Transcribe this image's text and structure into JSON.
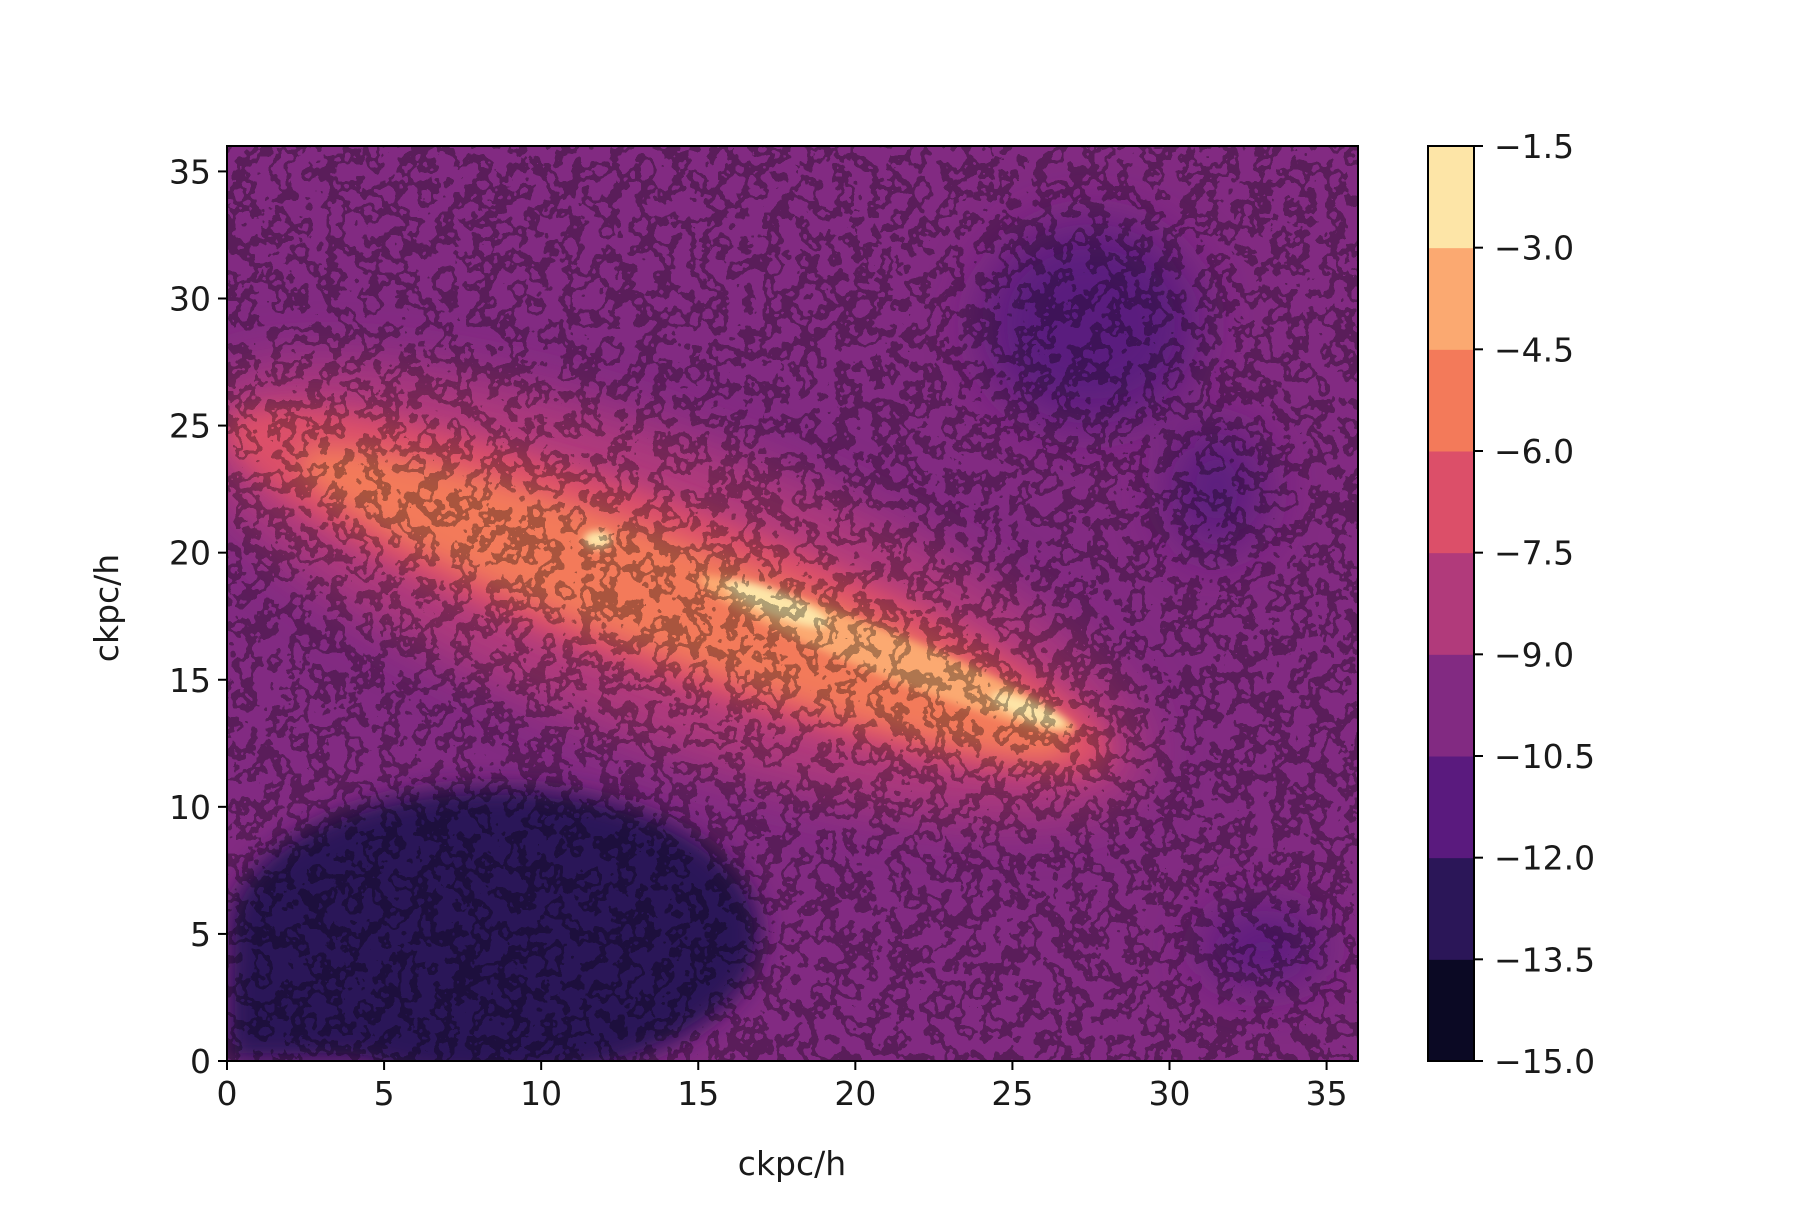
{
  "chart_data": {
    "type": "heatmap",
    "title": "",
    "xlabel": "ckpc/h",
    "ylabel": "ckpc/h",
    "xlim": [
      0,
      36
    ],
    "ylim": [
      0,
      36
    ],
    "xticks": [
      0,
      5,
      10,
      15,
      20,
      25,
      30,
      35
    ],
    "yticks": [
      0,
      5,
      10,
      15,
      20,
      25,
      30,
      35
    ],
    "grid": false,
    "colormap": "magma",
    "colorbar": {
      "levels": [
        -15.0,
        -13.5,
        -12.0,
        -10.5,
        -9.0,
        -7.5,
        -6.0,
        -4.5,
        -3.0,
        -1.5
      ],
      "tick_labels": [
        "−15.0",
        "−13.5",
        "−12.0",
        "−10.5",
        "−9.0",
        "−7.5",
        "−6.0",
        "−4.5",
        "−3.0",
        "−1.5"
      ],
      "colors": [
        "#0b0924",
        "#2b1658",
        "#5a1a7e",
        "#822a82",
        "#b13a7b",
        "#dc4f69",
        "#f37a5a",
        "#fba971",
        "#fde5a7"
      ]
    },
    "features": [
      {
        "name": "background",
        "level": -10.5
      },
      {
        "name": "dark void lower-left",
        "x": [
          0,
          17
        ],
        "y": [
          0,
          10
        ],
        "level": -13.0
      },
      {
        "name": "dark void upper-right",
        "x": [
          25,
          34
        ],
        "y": [
          21,
          33
        ],
        "level": -12.0
      },
      {
        "name": "bright filament",
        "from": [
          0,
          25
        ],
        "to": [
          28,
          12
        ],
        "level": -5.0
      },
      {
        "name": "core",
        "from": [
          15,
          19
        ],
        "to": [
          27,
          13
        ],
        "level": -3.0
      }
    ]
  }
}
